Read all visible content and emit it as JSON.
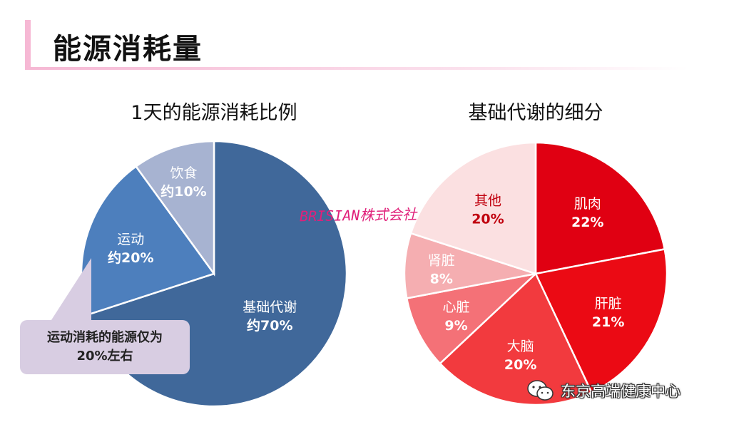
{
  "page_title": "能源消耗量",
  "watermark": "BRISIAN株式会社",
  "callout_text": "运动消耗的能源仅为\n20%左右",
  "brand_text": "东京高端健康中心",
  "icon": "wechat-icon",
  "chart_data": [
    {
      "type": "pie",
      "title": "1天的能源消耗比例",
      "slices": [
        {
          "name": "基础代谢",
          "label": "约70%",
          "value": 70,
          "color": "#40689a"
        },
        {
          "name": "运动",
          "label": "约20%",
          "value": 20,
          "color": "#4d7fbd"
        },
        {
          "name": "饮食",
          "label": "约10%",
          "value": 10,
          "color": "#a7b3d1"
        }
      ]
    },
    {
      "type": "pie",
      "title": "基础代谢的细分",
      "slices": [
        {
          "name": "肌肉",
          "label": "22%",
          "value": 22,
          "color": "#e00012"
        },
        {
          "name": "肝脏",
          "label": "21%",
          "value": 21,
          "color": "#eb0a14"
        },
        {
          "name": "大脑",
          "label": "20%",
          "value": 20,
          "color": "#f23a3e"
        },
        {
          "name": "心脏",
          "label": "9%",
          "value": 9,
          "color": "#f47177"
        },
        {
          "name": "肾脏",
          "label": "8%",
          "value": 8,
          "color": "#f5aeb1"
        },
        {
          "name": "其他",
          "label": "20%",
          "value": 20,
          "color": "#fbe0e1"
        }
      ]
    }
  ]
}
